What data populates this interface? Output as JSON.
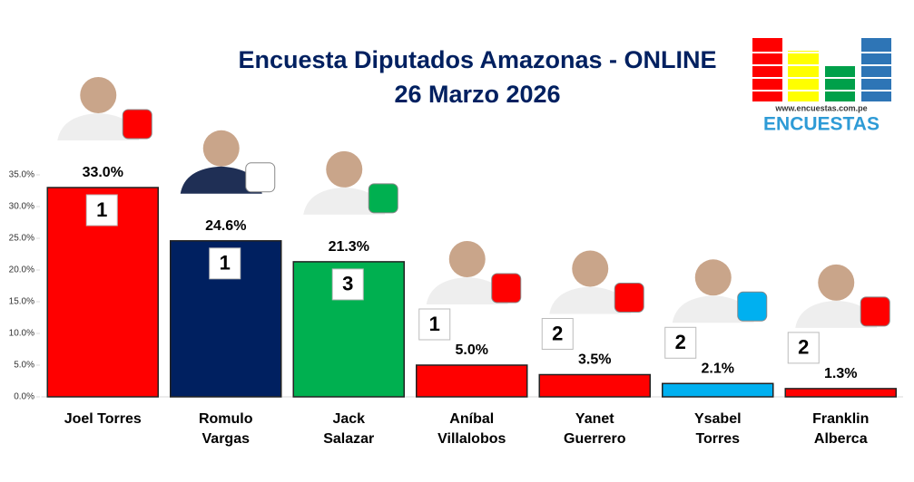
{
  "chart_data": {
    "type": "bar",
    "title": "Encuesta Diputados Amazonas - ONLINE",
    "subtitle": "26 Marzo 2026",
    "logo_url": "www.encuestas.com.pe",
    "logo_name": "ENCUESTAS",
    "categories": [
      "Joel Torres",
      "Romulo Vargas",
      "Jack Salazar",
      "Aníbal Villalobos",
      "Yanet Guerrero",
      "Ysabel Torres",
      "Franklin Alberca"
    ],
    "values": [
      33.0,
      24.6,
      21.3,
      5.0,
      3.5,
      2.1,
      1.3
    ],
    "value_labels": [
      "33.0%",
      "24.6%",
      "21.3%",
      "5.0%",
      "3.5%",
      "2.1%",
      "1.3%"
    ],
    "seats": [
      1,
      1,
      3,
      1,
      2,
      2,
      2
    ],
    "colors": [
      "#ff0000",
      "#002060",
      "#00b050",
      "#ff0000",
      "#ff0000",
      "#00b0f0",
      "#ff0000"
    ],
    "ylim": [
      0,
      35
    ],
    "yticks": [
      {
        "value": 0,
        "label": "0.0%"
      },
      {
        "value": 5,
        "label": "5.0%"
      },
      {
        "value": 10,
        "label": "10.0%"
      },
      {
        "value": 15,
        "label": "15.0%"
      },
      {
        "value": 20,
        "label": "20.0%"
      },
      {
        "value": 25,
        "label": "25.0%"
      },
      {
        "value": 30,
        "label": "30.0%"
      },
      {
        "value": 35,
        "label": "35.0%"
      }
    ],
    "grid": false
  }
}
